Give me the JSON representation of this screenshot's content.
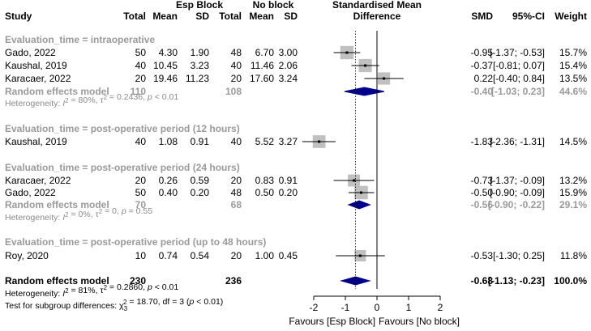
{
  "headers": {
    "study": "Study",
    "exp_group": "Esp Block",
    "ctl_group": "No block",
    "exp_total": "Total",
    "exp_mean": "Mean",
    "exp_sd": "SD",
    "ctl_total": "Total",
    "ctl_mean": "Mean",
    "ctl_sd": "SD",
    "effect_line1": "Standardised Mean",
    "effect_line2": "Difference",
    "smd": "SMD",
    "ci": "95%-CI",
    "weight": "Weight"
  },
  "subgroups": [
    {
      "label": "Evaluation_time = intraoperative",
      "studies": [
        {
          "study": "Gado, 2022",
          "exp_total": "50",
          "exp_mean": "4.30",
          "exp_sd": "1.90",
          "ctl_total": "48",
          "ctl_mean": "6.70",
          "ctl_sd": "3.00",
          "smd": -0.95,
          "lo": -1.37,
          "hi": -0.53,
          "smd_text": "-0.95",
          "ci_text": "[-1.37; -0.53]",
          "weight": "15.7%",
          "w": 15.7
        },
        {
          "study": "Kaushal, 2019",
          "exp_total": "40",
          "exp_mean": "10.45",
          "exp_sd": "3.23",
          "ctl_total": "40",
          "ctl_mean": "11.46",
          "ctl_sd": "2.06",
          "smd": -0.37,
          "lo": -0.81,
          "hi": 0.07,
          "smd_text": "-0.37",
          "ci_text": "[-0.81; 0.07]",
          "weight": "15.4%",
          "w": 15.4
        },
        {
          "study": "Karacaer, 2022",
          "exp_total": "20",
          "exp_mean": "19.46",
          "exp_sd": "11.23",
          "ctl_total": "20",
          "ctl_mean": "17.60",
          "ctl_sd": "3.24",
          "smd": 0.22,
          "lo": -0.4,
          "hi": 0.84,
          "smd_text": "0.22",
          "ci_text": "[-0.40; 0.84]",
          "weight": "13.5%",
          "w": 13.5
        }
      ],
      "pooled": {
        "label": "Random effects model",
        "exp_total": "110",
        "ctl_total": "108",
        "smd": -0.4,
        "lo": -1.03,
        "hi": 0.23,
        "smd_text": "-0.40",
        "ci_text": "[-1.03; 0.23]",
        "weight": "44.6%"
      },
      "heterogeneity": {
        "prefix": "Heterogeneity: ",
        "i2_label": "I",
        "i2_rest": " = 80%, τ",
        "tau_rest": " = 0.2436, ",
        "p_label": "p",
        "p_rest": " < 0.01"
      }
    },
    {
      "label": "Evaluation_time = post-operative period (12 hours)",
      "studies": [
        {
          "study": "Kaushal, 2019",
          "exp_total": "40",
          "exp_mean": "1.08",
          "exp_sd": "0.91",
          "ctl_total": "40",
          "ctl_mean": "5.52",
          "ctl_sd": "3.27",
          "smd": -1.83,
          "lo": -2.36,
          "hi": -1.31,
          "smd_text": "-1.83",
          "ci_text": "[-2.36; -1.31]",
          "weight": "14.5%",
          "w": 14.5
        }
      ]
    },
    {
      "label": "Evaluation_time = post-operative period (24 hours)",
      "studies": [
        {
          "study": "Karacaer, 2022",
          "exp_total": "20",
          "exp_mean": "0.26",
          "exp_sd": "0.59",
          "ctl_total": "20",
          "ctl_mean": "0.83",
          "ctl_sd": "0.91",
          "smd": -0.73,
          "lo": -1.37,
          "hi": -0.09,
          "smd_text": "-0.73",
          "ci_text": "[-1.37; -0.09]",
          "weight": "13.2%",
          "w": 13.2
        },
        {
          "study": "Gado, 2022",
          "exp_total": "50",
          "exp_mean": "0.40",
          "exp_sd": "0.20",
          "ctl_total": "48",
          "ctl_mean": "0.50",
          "ctl_sd": "0.20",
          "smd": -0.5,
          "lo": -0.9,
          "hi": -0.09,
          "smd_text": "-0.50",
          "ci_text": "[-0.90; -0.09]",
          "weight": "15.9%",
          "w": 15.9
        }
      ],
      "pooled": {
        "label": "Random effects model",
        "exp_total": "70",
        "ctl_total": "68",
        "smd": -0.56,
        "lo": -0.9,
        "hi": -0.22,
        "smd_text": "-0.56",
        "ci_text": "[-0.90; -0.22]",
        "weight": "29.1%"
      },
      "heterogeneity": {
        "prefix": "Heterogeneity: ",
        "i2_label": "I",
        "i2_rest": " = 0%, τ",
        "tau_rest": " = 0, ",
        "p_label": "p",
        "p_rest": " = 0.55"
      }
    },
    {
      "label": "Evaluation_time = post-operative period (up to 48 hours)",
      "studies": [
        {
          "study": "Roy, 2020",
          "exp_total": "10",
          "exp_mean": "0.74",
          "exp_sd": "0.54",
          "ctl_total": "20",
          "ctl_mean": "1.00",
          "ctl_sd": "0.45",
          "smd": -0.53,
          "lo": -1.3,
          "hi": 0.25,
          "smd_text": "-0.53",
          "ci_text": "[-1.30; 0.25]",
          "weight": "11.8%",
          "w": 11.8
        }
      ]
    }
  ],
  "overall": {
    "label": "Random effects model",
    "exp_total": "230",
    "ctl_total": "236",
    "smd": -0.68,
    "lo": -1.13,
    "hi": -0.23,
    "smd_text": "-0.68",
    "ci_text": "[-1.13; -0.23]",
    "weight": "100.0%",
    "heterogeneity": {
      "prefix": "Heterogeneity: ",
      "i2_label": "I",
      "i2_rest": " = 81%, τ",
      "tau_rest": " = 0.2860, ",
      "p_label": "p",
      "p_rest": " < 0.01"
    },
    "subgroup_test": {
      "prefix": "Test for subgroup differences: χ",
      "sub": "3",
      "rest": " = 18.70, df = 3 (",
      "p_label": "p",
      "p_rest": " < 0.01)"
    }
  },
  "chart_data": {
    "type": "forest",
    "title": "Standardised Mean Difference",
    "xlim": [
      -2,
      2
    ],
    "ticks": [
      -2,
      -1,
      0,
      1,
      2
    ],
    "tick_labels": [
      "-2",
      "-1",
      "0",
      "1",
      "2"
    ],
    "null_value": 0,
    "overall_reference": -0.68,
    "xlabel_left": "Favours [Esp Block]",
    "xlabel_right": "Favours [No block]",
    "colors": {
      "square": "#c0c0c0",
      "diamond": "#00008b",
      "line": "#000000",
      "grey_text": "#9a9a9a"
    }
  }
}
